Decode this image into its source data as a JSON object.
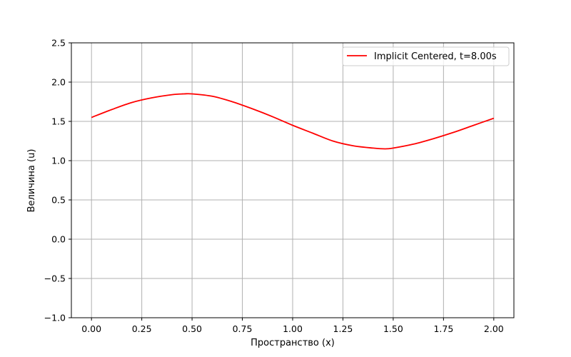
{
  "chart_data": {
    "type": "line",
    "xlabel": "Пространство (x)",
    "ylabel": "Величина (u)",
    "xlim": [
      -0.1,
      2.1
    ],
    "ylim": [
      -1.0,
      2.5
    ],
    "xticks": [
      0.0,
      0.25,
      0.5,
      0.75,
      1.0,
      1.25,
      1.5,
      1.75,
      2.0
    ],
    "xtick_labels": [
      "0.00",
      "0.25",
      "0.50",
      "0.75",
      "1.00",
      "1.25",
      "1.50",
      "1.75",
      "2.00"
    ],
    "yticks": [
      -1.0,
      -0.5,
      0.0,
      0.5,
      1.0,
      1.5,
      2.0,
      2.5
    ],
    "ytick_labels": [
      "−1.0",
      "−0.5",
      "0.0",
      "0.5",
      "1.0",
      "1.5",
      "2.0",
      "2.5"
    ],
    "grid": true,
    "legend_position": "top-right",
    "series": [
      {
        "name": "Implicit Centered, t=8.00s",
        "color": "#ff0000",
        "x": [
          0.0,
          0.1,
          0.2,
          0.3,
          0.4,
          0.46,
          0.5,
          0.6,
          0.7,
          0.8,
          0.9,
          1.0,
          1.1,
          1.2,
          1.3,
          1.4,
          1.46,
          1.5,
          1.6,
          1.7,
          1.8,
          1.9,
          2.0
        ],
        "y": [
          1.55,
          1.65,
          1.74,
          1.8,
          1.84,
          1.85,
          1.85,
          1.82,
          1.75,
          1.66,
          1.56,
          1.45,
          1.35,
          1.25,
          1.19,
          1.16,
          1.15,
          1.16,
          1.21,
          1.28,
          1.36,
          1.45,
          1.54
        ]
      }
    ]
  }
}
